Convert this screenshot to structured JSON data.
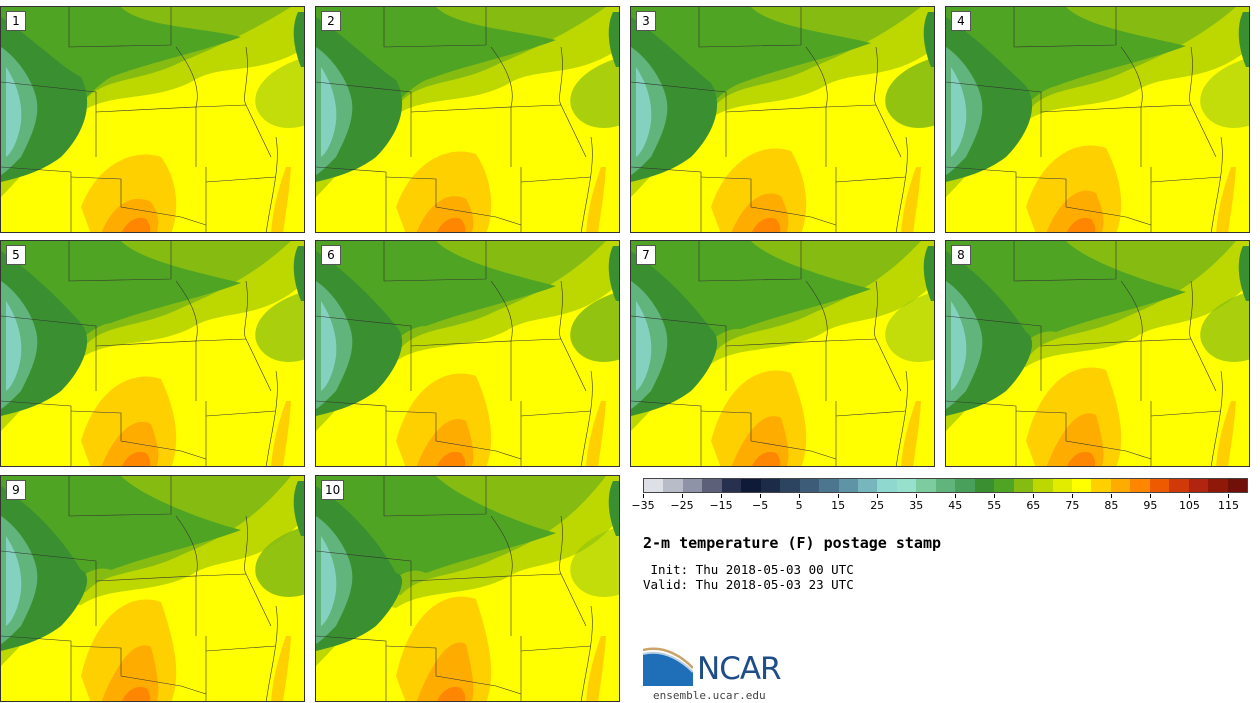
{
  "panels": [
    "1",
    "2",
    "3",
    "4",
    "5",
    "6",
    "7",
    "8",
    "9",
    "10"
  ],
  "colorbar": {
    "colors": [
      "#dde0e6",
      "#b8bcc8",
      "#8e93a8",
      "#5c6078",
      "#283050",
      "#0e1a38",
      "#1c2c48",
      "#2c4460",
      "#3c5c78",
      "#4c7690",
      "#5e94a6",
      "#76b6bc",
      "#8ed8d0",
      "#96e0cc",
      "#7ccca0",
      "#60b47c",
      "#48a05a",
      "#3a9030",
      "#50a424",
      "#86bc12",
      "#bcd800",
      "#e2ec00",
      "#ffff00",
      "#ffd000",
      "#ffac00",
      "#ff8600",
      "#ee5a00",
      "#d03a08",
      "#b02410",
      "#901808",
      "#701008"
    ],
    "tick_labels": [
      "−35",
      "−25",
      "−15",
      "−5",
      "5",
      "15",
      "25",
      "35",
      "45",
      "55",
      "65",
      "75",
      "85",
      "95",
      "105",
      "115"
    ],
    "min": -35,
    "max": 120,
    "tick_values": [
      -35,
      -25,
      -15,
      -5,
      5,
      15,
      25,
      35,
      45,
      55,
      65,
      75,
      85,
      95,
      105,
      115
    ]
  },
  "title": "2-m temperature (F) postage stamp",
  "init_line": " Init: Thu 2018-05-03 00 UTC",
  "valid_line": "Valid: Thu 2018-05-03 23 UTC",
  "logo_text": "NCAR",
  "website": "ensemble.ucar.edu"
}
